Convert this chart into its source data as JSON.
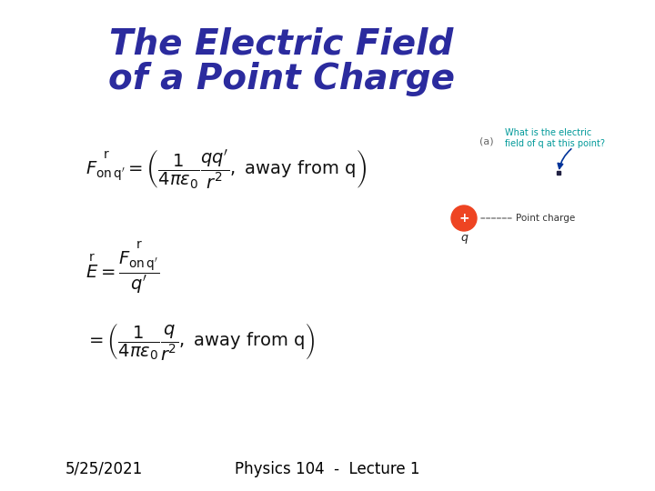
{
  "title_line1": "The Electric Field",
  "title_line2": "of a Point Charge",
  "title_color": "#2b2b9e",
  "title_fontsize": 28,
  "bg_color": "#ffffff",
  "footer_left": "5/25/2021",
  "footer_center": "Physics 104  -  Lecture 1",
  "footer_fontsize": 12,
  "eq_fontsize": 13,
  "eq_color": "#111111",
  "diagram_text_color": "#009999",
  "label_a_color": "#666666",
  "charge_circle_color": "#ee4422",
  "arrow_color": "#003399"
}
